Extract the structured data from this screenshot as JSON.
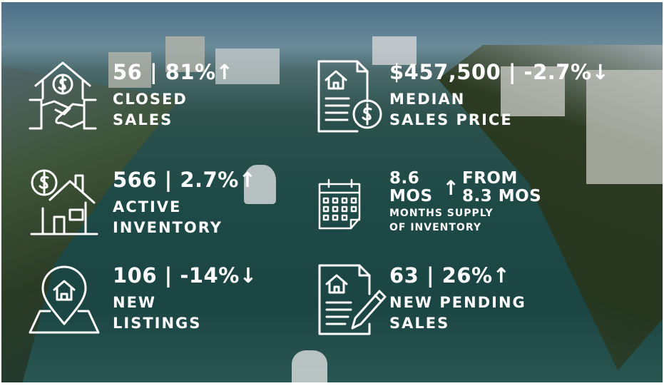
{
  "stats": [
    {
      "value": "56 | 81%",
      "arrow": "↑",
      "label": "CLOSED\nSALES",
      "icon": "house-handshake-icon"
    },
    {
      "value": "$457,500 | -2.7%",
      "arrow": "↓",
      "label": "MEDIAN\nSALES PRICE",
      "icon": "document-dollar-icon"
    },
    {
      "value": "566 | 2.7%",
      "arrow": "↑",
      "label": "ACTIVE\nINVENTORY",
      "icon": "house-dollar-icon"
    },
    {
      "value": "8.6\nMOS",
      "arrow": "↑",
      "from": "FROM\n8.3 MOS",
      "label": "MONTHS SUPPLY\nOF INVENTORY",
      "icon": "calendar-icon"
    },
    {
      "value": "106 | -14%",
      "arrow": "↓",
      "label": "NEW\nLISTINGS",
      "icon": "location-house-icon"
    },
    {
      "value": "63 | 26%",
      "arrow": "↑",
      "label": "NEW PENDING\nSALES",
      "icon": "contract-pen-icon"
    }
  ]
}
